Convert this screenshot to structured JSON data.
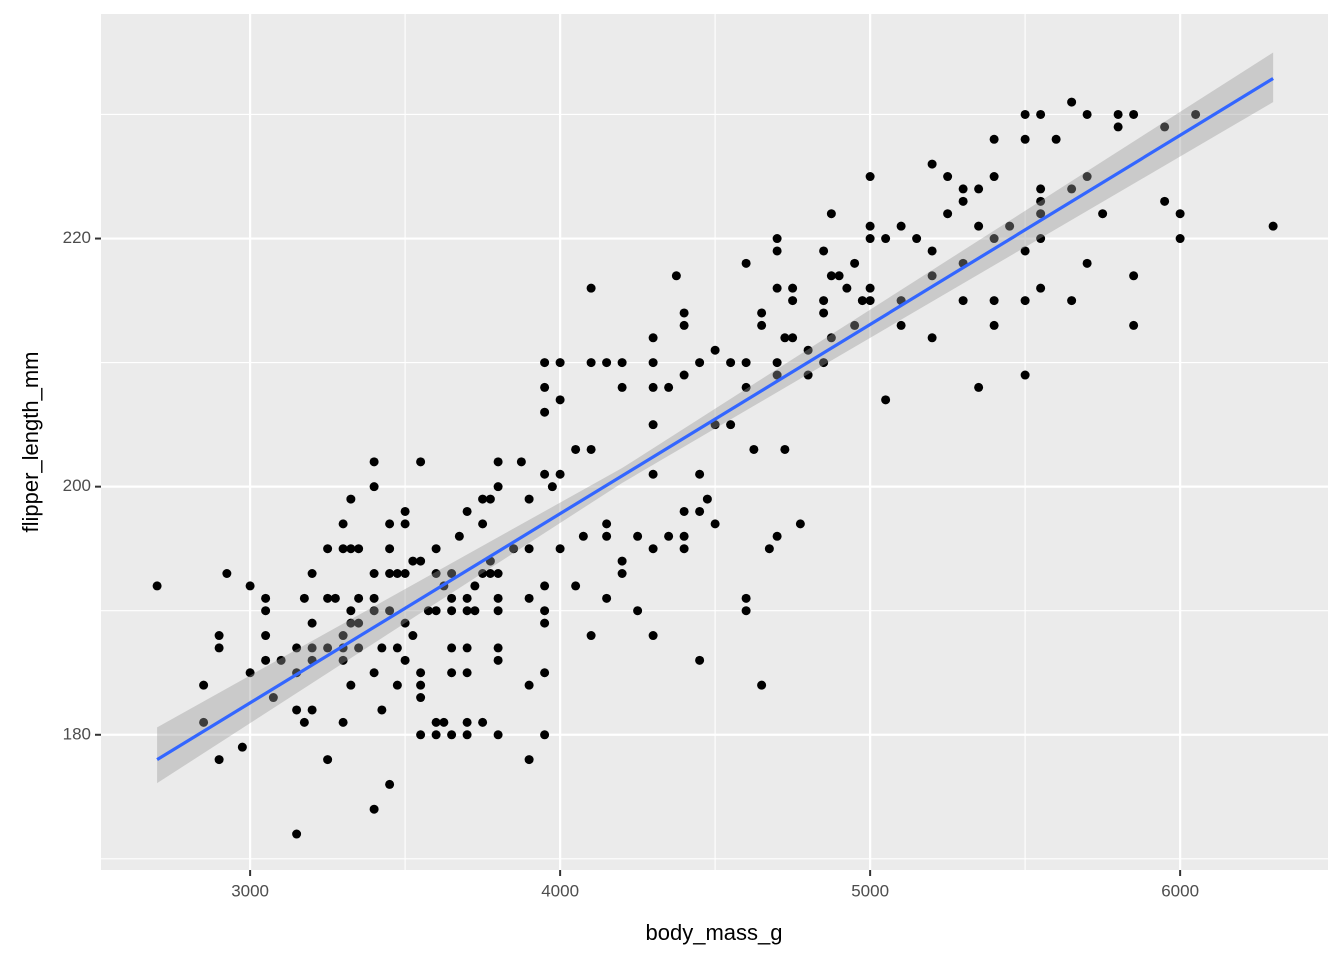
{
  "chart_data": {
    "type": "scatter",
    "xlabel": "body_mass_g",
    "ylabel": "flipper_length_mm",
    "color": "#000000",
    "x": [
      2700,
      2850,
      2850,
      2900,
      2900,
      2900,
      2925,
      2975,
      3000,
      3000,
      3050,
      3050,
      3050,
      3050,
      3075,
      3100,
      3150,
      3150,
      3150,
      3150,
      3175,
      3175,
      3200,
      3200,
      3200,
      3200,
      3200,
      3250,
      3250,
      3250,
      3250,
      3275,
      3300,
      3300,
      3300,
      3300,
      3300,
      3300,
      3325,
      3325,
      3325,
      3325,
      3325,
      3350,
      3350,
      3350,
      3350,
      3400,
      3400,
      3400,
      3400,
      3400,
      3400,
      3400,
      3425,
      3425,
      3450,
      3450,
      3450,
      3450,
      3450,
      3475,
      3475,
      3475,
      3500,
      3500,
      3500,
      3500,
      3500,
      3525,
      3525,
      3550,
      3550,
      3550,
      3550,
      3550,
      3550,
      3575,
      3600,
      3600,
      3600,
      3600,
      3600,
      3625,
      3625,
      3650,
      3650,
      3650,
      3650,
      3650,
      3650,
      3675,
      3700,
      3700,
      3700,
      3700,
      3700,
      3700,
      3700,
      3725,
      3725,
      3750,
      3750,
      3750,
      3750,
      3775,
      3775,
      3775,
      3800,
      3800,
      3800,
      3800,
      3800,
      3800,
      3800,
      3800,
      3850,
      3875,
      3900,
      3900,
      3900,
      3900,
      3900,
      3950,
      3950,
      3950,
      3950,
      3950,
      3950,
      3950,
      3950,
      3950,
      3975,
      4000,
      4000,
      4000,
      4000,
      4050,
      4050,
      4075,
      4100,
      4100,
      4100,
      4100,
      4150,
      4150,
      4150,
      4150,
      4200,
      4200,
      4200,
      4200,
      4250,
      4250,
      4300,
      4300,
      4300,
      4300,
      4300,
      4300,
      4300,
      4350,
      4350,
      4375,
      4400,
      4400,
      4400,
      4400,
      4400,
      4400,
      4450,
      4450,
      4450,
      4450,
      4475,
      4500,
      4500,
      4500,
      4550,
      4550,
      4600,
      4600,
      4600,
      4600,
      4600,
      4625,
      4650,
      4650,
      4650,
      4675,
      4700,
      4700,
      4700,
      4700,
      4700,
      4700,
      4725,
      4725,
      4750,
      4750,
      4750,
      4775,
      4800,
      4800,
      4850,
      4850,
      4850,
      4850,
      4875,
      4875,
      4875,
      4900,
      4925,
      4950,
      4950,
      4975,
      5000,
      5000,
      5000,
      5000,
      5000,
      5050,
      5050,
      5100,
      5100,
      5100,
      5150,
      5200,
      5200,
      5200,
      5200,
      5250,
      5250,
      5300,
      5300,
      5300,
      5300,
      5350,
      5350,
      5350,
      5400,
      5400,
      5400,
      5400,
      5400,
      5450,
      5500,
      5500,
      5500,
      5500,
      5500,
      5550,
      5550,
      5550,
      5550,
      5550,
      5550,
      5600,
      5650,
      5650,
      5650,
      5700,
      5700,
      5700,
      5750,
      5800,
      5800,
      5850,
      5850,
      5850,
      5950,
      5950,
      6000,
      6000,
      6050,
      6300
    ],
    "y": [
      192,
      184,
      181,
      188,
      187,
      178,
      193,
      179,
      192,
      185,
      191,
      190,
      188,
      186,
      183,
      186,
      185,
      187,
      182,
      172,
      191,
      181,
      193,
      189,
      187,
      186,
      182,
      195,
      191,
      187,
      178,
      191,
      197,
      195,
      188,
      187,
      186,
      181,
      199,
      195,
      190,
      189,
      184,
      195,
      191,
      189,
      187,
      202,
      200,
      193,
      191,
      190,
      185,
      174,
      182,
      187,
      197,
      195,
      193,
      190,
      176,
      193,
      187,
      184,
      198,
      197,
      193,
      189,
      186,
      188,
      194,
      194,
      202,
      185,
      184,
      183,
      180,
      190,
      195,
      193,
      190,
      180,
      181,
      192,
      181,
      193,
      191,
      190,
      187,
      185,
      180,
      196,
      198,
      191,
      190,
      187,
      185,
      181,
      180,
      190,
      192,
      197,
      199,
      193,
      181,
      199,
      194,
      193,
      202,
      200,
      193,
      191,
      190,
      187,
      186,
      180,
      195,
      202,
      195,
      191,
      184,
      178,
      199,
      210,
      208,
      206,
      201,
      192,
      190,
      189,
      185,
      180,
      200,
      210,
      207,
      201,
      195,
      203,
      192,
      196,
      210,
      203,
      188,
      216,
      210,
      197,
      196,
      191,
      210,
      208,
      194,
      193,
      196,
      190,
      212,
      210,
      208,
      205,
      201,
      195,
      188,
      208,
      196,
      217,
      214,
      213,
      209,
      198,
      196,
      195,
      210,
      201,
      198,
      186,
      199,
      211,
      205,
      197,
      210,
      205,
      218,
      210,
      208,
      191,
      190,
      203,
      184,
      214,
      213,
      195,
      220,
      219,
      216,
      210,
      209,
      196,
      203,
      212,
      216,
      215,
      212,
      197,
      211,
      209,
      219,
      215,
      214,
      210,
      222,
      217,
      212,
      217,
      216,
      218,
      213,
      215,
      225,
      221,
      220,
      216,
      215,
      220,
      207,
      215,
      213,
      221,
      220,
      226,
      219,
      217,
      212,
      225,
      222,
      224,
      223,
      218,
      215,
      208,
      224,
      221,
      228,
      225,
      220,
      215,
      213,
      221,
      230,
      228,
      219,
      215,
      209,
      230,
      224,
      223,
      222,
      220,
      216,
      228,
      231,
      224,
      215,
      230,
      225,
      218,
      222,
      230,
      229,
      230,
      217,
      213,
      229,
      223,
      222,
      220,
      230,
      221
    ],
    "fit": {
      "x": [
        2700,
        6300
      ],
      "y": [
        178.0,
        232.9
      ],
      "color": "#3366ff"
    },
    "band": {
      "x": [
        2700,
        4200,
        6300
      ],
      "lower": [
        176.1,
        200.3,
        231.0
      ],
      "upper": [
        180.6,
        201.5,
        235.0
      ]
    },
    "xlim": [
      2519,
      6477
    ],
    "ylim": [
      169.1,
      238.1
    ],
    "xticks": [
      3000,
      4000,
      5000,
      6000
    ],
    "yticks": [
      180,
      200,
      220
    ],
    "xminor": [
      3500,
      4500,
      5500
    ],
    "yminor": [
      170,
      190,
      210,
      230
    ],
    "grid": true
  }
}
